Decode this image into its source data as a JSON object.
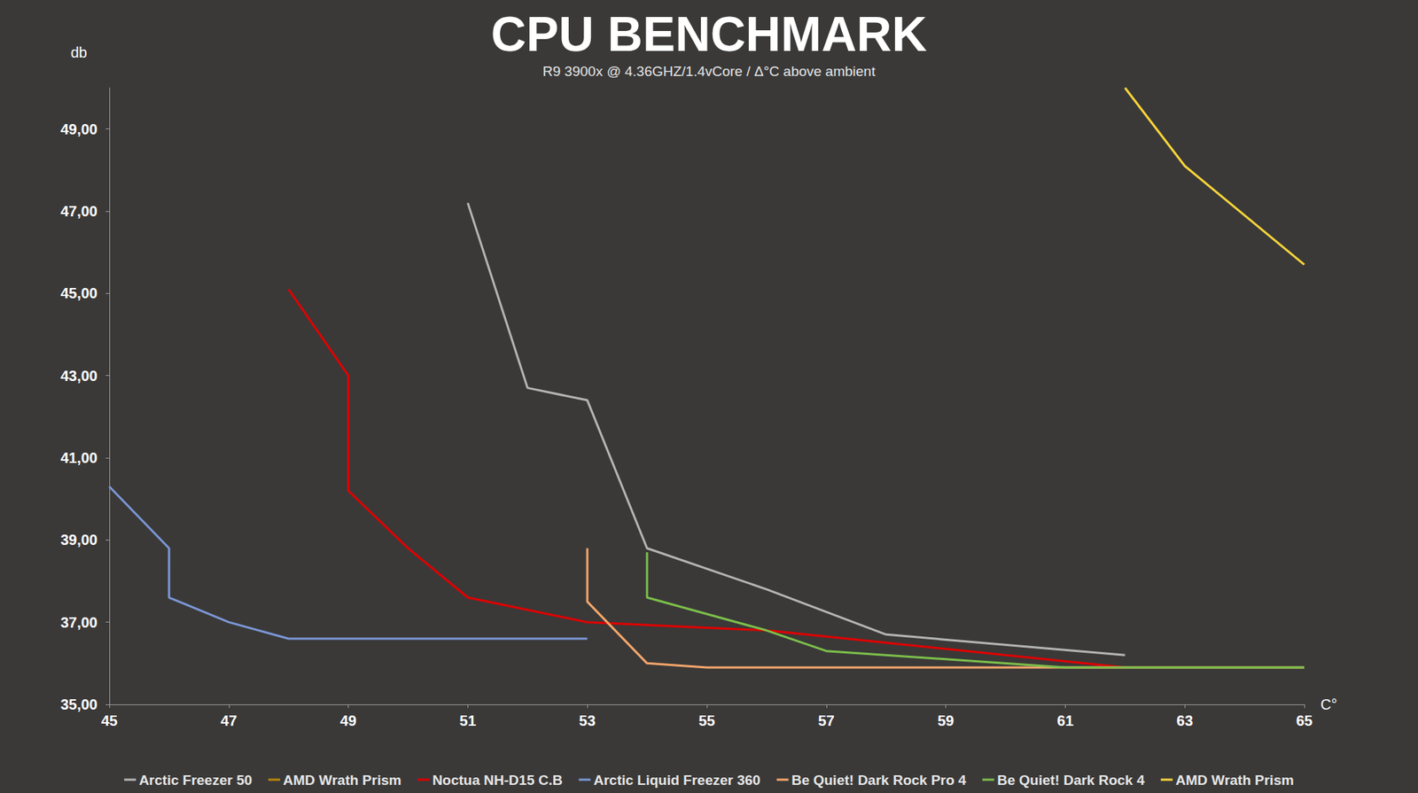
{
  "chart_data": {
    "type": "line",
    "title": "CPU BENCHMARK",
    "subtitle": "R9 3900x @ 4.36GHZ/1.4vCore / Δ°C above ambient",
    "x_label": "C°",
    "y_label": "db",
    "xlim": [
      45,
      65
    ],
    "xticks": [
      45,
      47,
      49,
      51,
      53,
      55,
      57,
      59,
      61,
      63,
      65
    ],
    "ylim": [
      35,
      50
    ],
    "yticks": [
      {
        "value": 35,
        "label": "35,00"
      },
      {
        "value": 37,
        "label": "37,00"
      },
      {
        "value": 39,
        "label": "39,00"
      },
      {
        "value": 41,
        "label": "41,00"
      },
      {
        "value": 43,
        "label": "43,00"
      },
      {
        "value": 45,
        "label": "45,00"
      },
      {
        "value": 47,
        "label": "47,00"
      },
      {
        "value": 49,
        "label": "49,00"
      }
    ],
    "grid": false,
    "legend": "bottom",
    "series": [
      {
        "name": "Arctic Freezer 50",
        "color": "#b4b4b4",
        "x": [
          51,
          52,
          53,
          54,
          56,
          58,
          62
        ],
        "values": [
          47.2,
          42.7,
          42.4,
          38.8,
          37.8,
          36.7,
          36.2
        ]
      },
      {
        "name": "AMD Wrath Prism",
        "color": "#b8860b",
        "x": [],
        "values": []
      },
      {
        "name": "Noctua NH-D15 C.B",
        "color": "#e00000",
        "x": [
          48,
          49,
          49,
          50,
          51,
          53,
          56,
          58,
          62
        ],
        "values": [
          45.1,
          43.0,
          40.2,
          38.8,
          37.6,
          37.0,
          36.8,
          36.5,
          35.9
        ]
      },
      {
        "name": "Arctic Liquid Freezer 360",
        "color": "#7b96d4",
        "x": [
          45,
          46,
          46,
          47,
          48,
          53
        ],
        "values": [
          40.3,
          38.8,
          37.6,
          37.0,
          36.6,
          36.6
        ]
      },
      {
        "name": "Be Quiet! Dark Rock Pro 4",
        "color": "#f5a56a",
        "x": [
          53,
          53,
          54,
          55,
          65
        ],
        "values": [
          38.8,
          37.5,
          36.0,
          35.9,
          35.9
        ]
      },
      {
        "name": "Be Quiet! Dark Rock 4",
        "color": "#7cbf4a",
        "x": [
          54,
          54,
          56,
          57,
          61,
          65
        ],
        "values": [
          38.7,
          37.6,
          36.8,
          36.3,
          35.9,
          35.9
        ]
      },
      {
        "name": "AMD Wrath Prism",
        "color": "#f5d33a",
        "x": [
          62,
          63,
          65
        ],
        "values": [
          50.0,
          48.1,
          45.7
        ]
      }
    ]
  }
}
